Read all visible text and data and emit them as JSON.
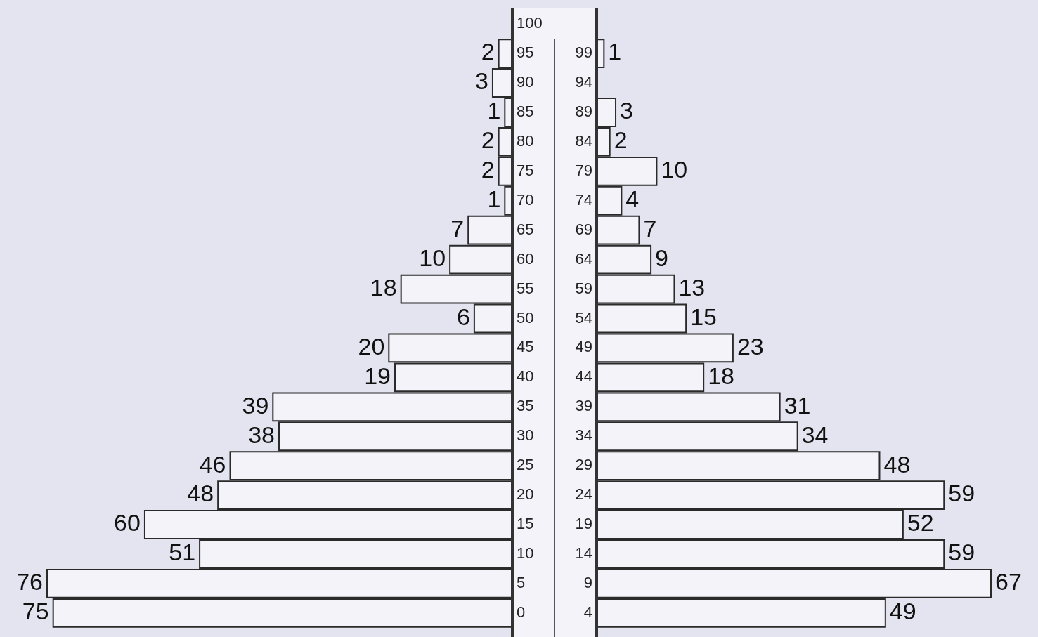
{
  "chart_data": [
    {
      "type": "bar",
      "orientation": "horizontal",
      "data_labels": true,
      "color": "#f3f3f9",
      "categories": [
        "100",
        "95",
        "90",
        "85",
        "80",
        "75",
        "70",
        "65",
        "60",
        "55",
        "50",
        "45",
        "40",
        "35",
        "30",
        "25",
        "20",
        "15",
        "10",
        "5",
        "0"
      ],
      "values": [
        null,
        2,
        3,
        1,
        2,
        2,
        1,
        7,
        10,
        18,
        6,
        20,
        19,
        39,
        38,
        46,
        48,
        60,
        51,
        76,
        75
      ]
    },
    {
      "type": "bar",
      "orientation": "horizontal",
      "data_labels": true,
      "color": "#f3f3f9",
      "categories": [
        null,
        "99",
        "94",
        "89",
        "84",
        "79",
        "74",
        "69",
        "64",
        "59",
        "54",
        "49",
        "44",
        "39",
        "34",
        "29",
        "24",
        "19",
        "14",
        "9",
        "4"
      ],
      "values": [
        null,
        1,
        null,
        3,
        2,
        10,
        4,
        7,
        9,
        13,
        15,
        23,
        18,
        31,
        34,
        48,
        59,
        52,
        59,
        67,
        49
      ]
    }
  ]
}
